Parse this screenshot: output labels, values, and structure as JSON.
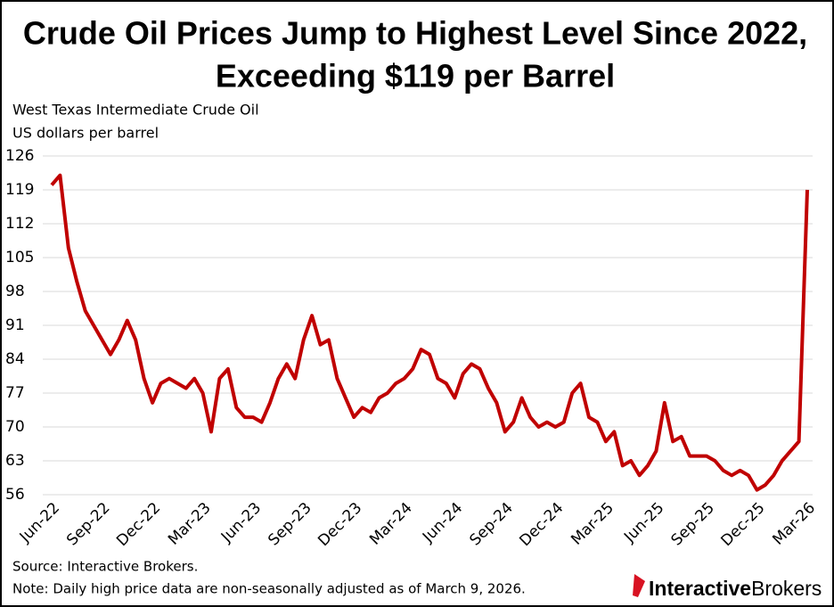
{
  "chart_data": {
    "type": "line",
    "title": [
      "Crude Oil Prices Jump to Highest Level Since 2022,",
      "Exceeding $119 per Barrel"
    ],
    "subtitle": [
      "West Texas Intermediate  Crude Oil",
      "US dollars per barrel"
    ],
    "categories": [
      "Jun-22",
      null,
      null,
      null,
      null,
      null,
      "Sep-22",
      null,
      null,
      null,
      null,
      null,
      "Dec-22",
      null,
      null,
      null,
      null,
      null,
      "Mar-23",
      null,
      null,
      null,
      null,
      null,
      "Jun-23",
      null,
      null,
      null,
      null,
      null,
      "Sep-23",
      null,
      null,
      null,
      null,
      null,
      "Dec-23",
      null,
      null,
      null,
      null,
      null,
      "Mar-24",
      null,
      null,
      null,
      null,
      null,
      "Jun-24",
      null,
      null,
      null,
      null,
      null,
      "Sep-24",
      null,
      null,
      null,
      null,
      null,
      "Dec-24",
      null,
      null,
      null,
      null,
      null,
      "Mar-25",
      null,
      null,
      null,
      null,
      null,
      "Jun-25",
      null,
      null,
      null,
      null,
      null,
      "Sep-25",
      null,
      null,
      null,
      null,
      null,
      "Dec-25",
      null,
      null,
      null,
      null,
      null,
      "Mar-26"
    ],
    "series": [
      {
        "name": "West Texas Intermediate  Crude Oil",
        "color": "#c00000",
        "values": [
          120,
          122,
          107,
          100,
          94,
          91,
          88,
          85,
          88,
          92,
          88,
          80,
          75,
          79,
          80,
          79,
          78,
          80,
          77,
          69,
          80,
          82,
          74,
          72,
          72,
          71,
          75,
          80,
          83,
          80,
          88,
          93,
          87,
          88,
          80,
          76,
          72,
          74,
          73,
          76,
          77,
          79,
          80,
          82,
          86,
          85,
          80,
          79,
          76,
          81,
          83,
          82,
          78,
          75,
          69,
          71,
          76,
          72,
          70,
          71,
          70,
          71,
          77,
          79,
          72,
          71,
          67,
          69,
          62,
          63,
          60,
          62,
          65,
          75,
          67,
          68,
          64,
          64,
          64,
          63,
          61,
          60,
          61,
          60,
          57,
          58,
          60,
          63,
          65,
          67,
          119
        ]
      }
    ],
    "ylim": [
      56,
      126
    ],
    "yticks": [
      56,
      63,
      70,
      77,
      84,
      91,
      98,
      105,
      112,
      119,
      126
    ],
    "grid": true,
    "source": "Source: Interactive Brokers.",
    "note": "Note: Daily high price data are non-seasonally adjusted as of March 9, 2026.",
    "brand": [
      "Interactive",
      "Brokers"
    ]
  }
}
